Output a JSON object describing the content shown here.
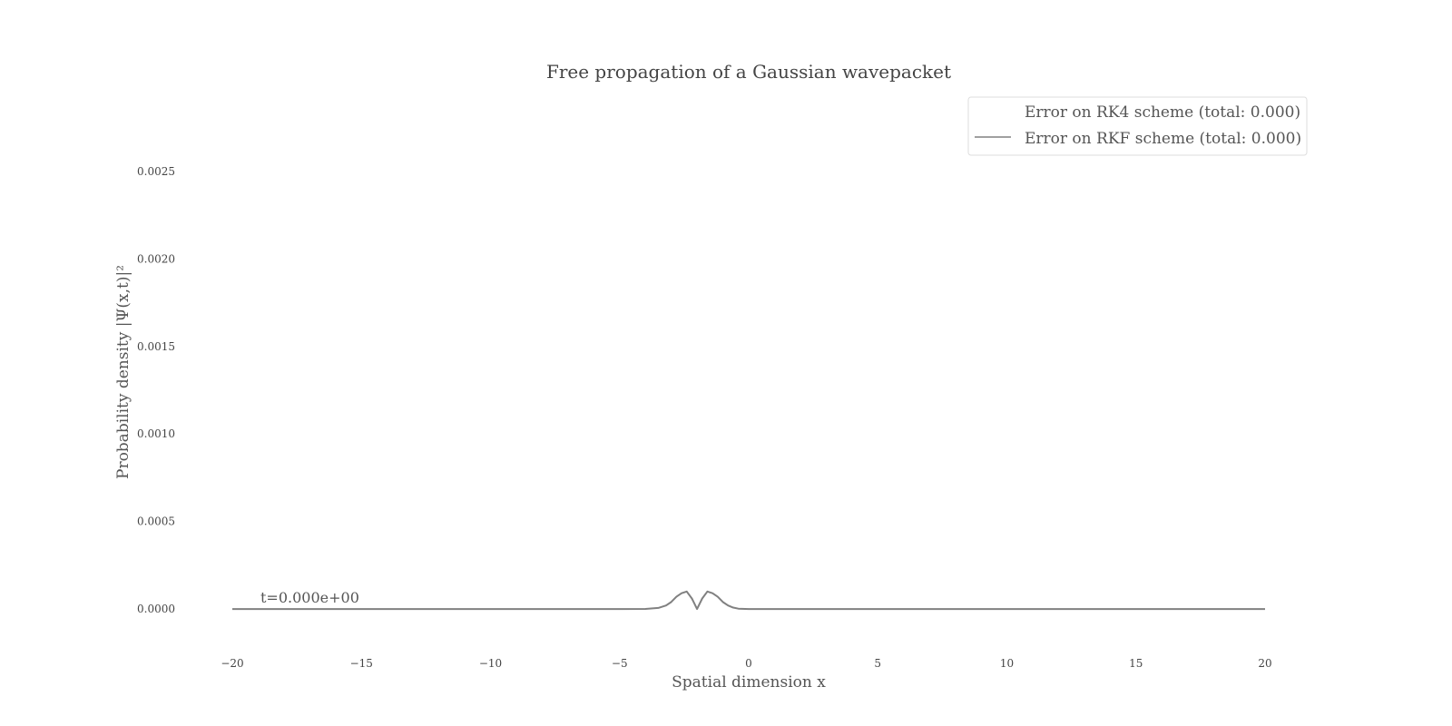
{
  "chart_data": {
    "type": "line",
    "title": "Free propagation of a Gaussian wavepacket",
    "xlabel": "Spatial dimension x",
    "ylabel": "Probability density |Ψ(x,t)|²",
    "xlim": [
      -20,
      20
    ],
    "ylim": [
      -0.00015,
      0.00265
    ],
    "xticks": [
      -20,
      -15,
      -10,
      -5,
      0,
      5,
      10,
      15,
      20
    ],
    "xtick_labels": [
      "−20",
      "−15",
      "−10",
      "−5",
      "0",
      "5",
      "10",
      "15",
      "20"
    ],
    "yticks": [
      0,
      0.0005,
      0.001,
      0.0015,
      0.002,
      0.0025
    ],
    "ytick_labels": [
      "0.0000",
      "0.0005",
      "0.0010",
      "0.0015",
      "0.0020",
      "0.0025"
    ],
    "grid": false,
    "legend_position": "top-right",
    "annotation": "t=0.000e+00",
    "series": [
      {
        "name": "Error on RK4 scheme (total: 0.000)",
        "color": "#ffffff",
        "x": [
          -20,
          20
        ],
        "y": [
          0,
          0
        ]
      },
      {
        "name": "Error on RKF scheme (total: 0.000)",
        "color": "#808080",
        "x": [
          -20,
          -5,
          -4,
          -3.5,
          -3.2,
          -3.0,
          -2.8,
          -2.6,
          -2.4,
          -2.2,
          -2.0,
          -1.8,
          -1.6,
          -1.4,
          -1.2,
          -1.0,
          -0.8,
          -0.6,
          -0.4,
          0,
          5,
          20
        ],
        "y": [
          0,
          0,
          5e-07,
          6e-06,
          2e-05,
          4e-05,
          7e-05,
          9e-05,
          0.0001,
          6e-05,
          0,
          6e-05,
          0.0001,
          9e-05,
          7e-05,
          4e-05,
          2e-05,
          8e-06,
          2e-06,
          0,
          0,
          0
        ]
      }
    ]
  }
}
